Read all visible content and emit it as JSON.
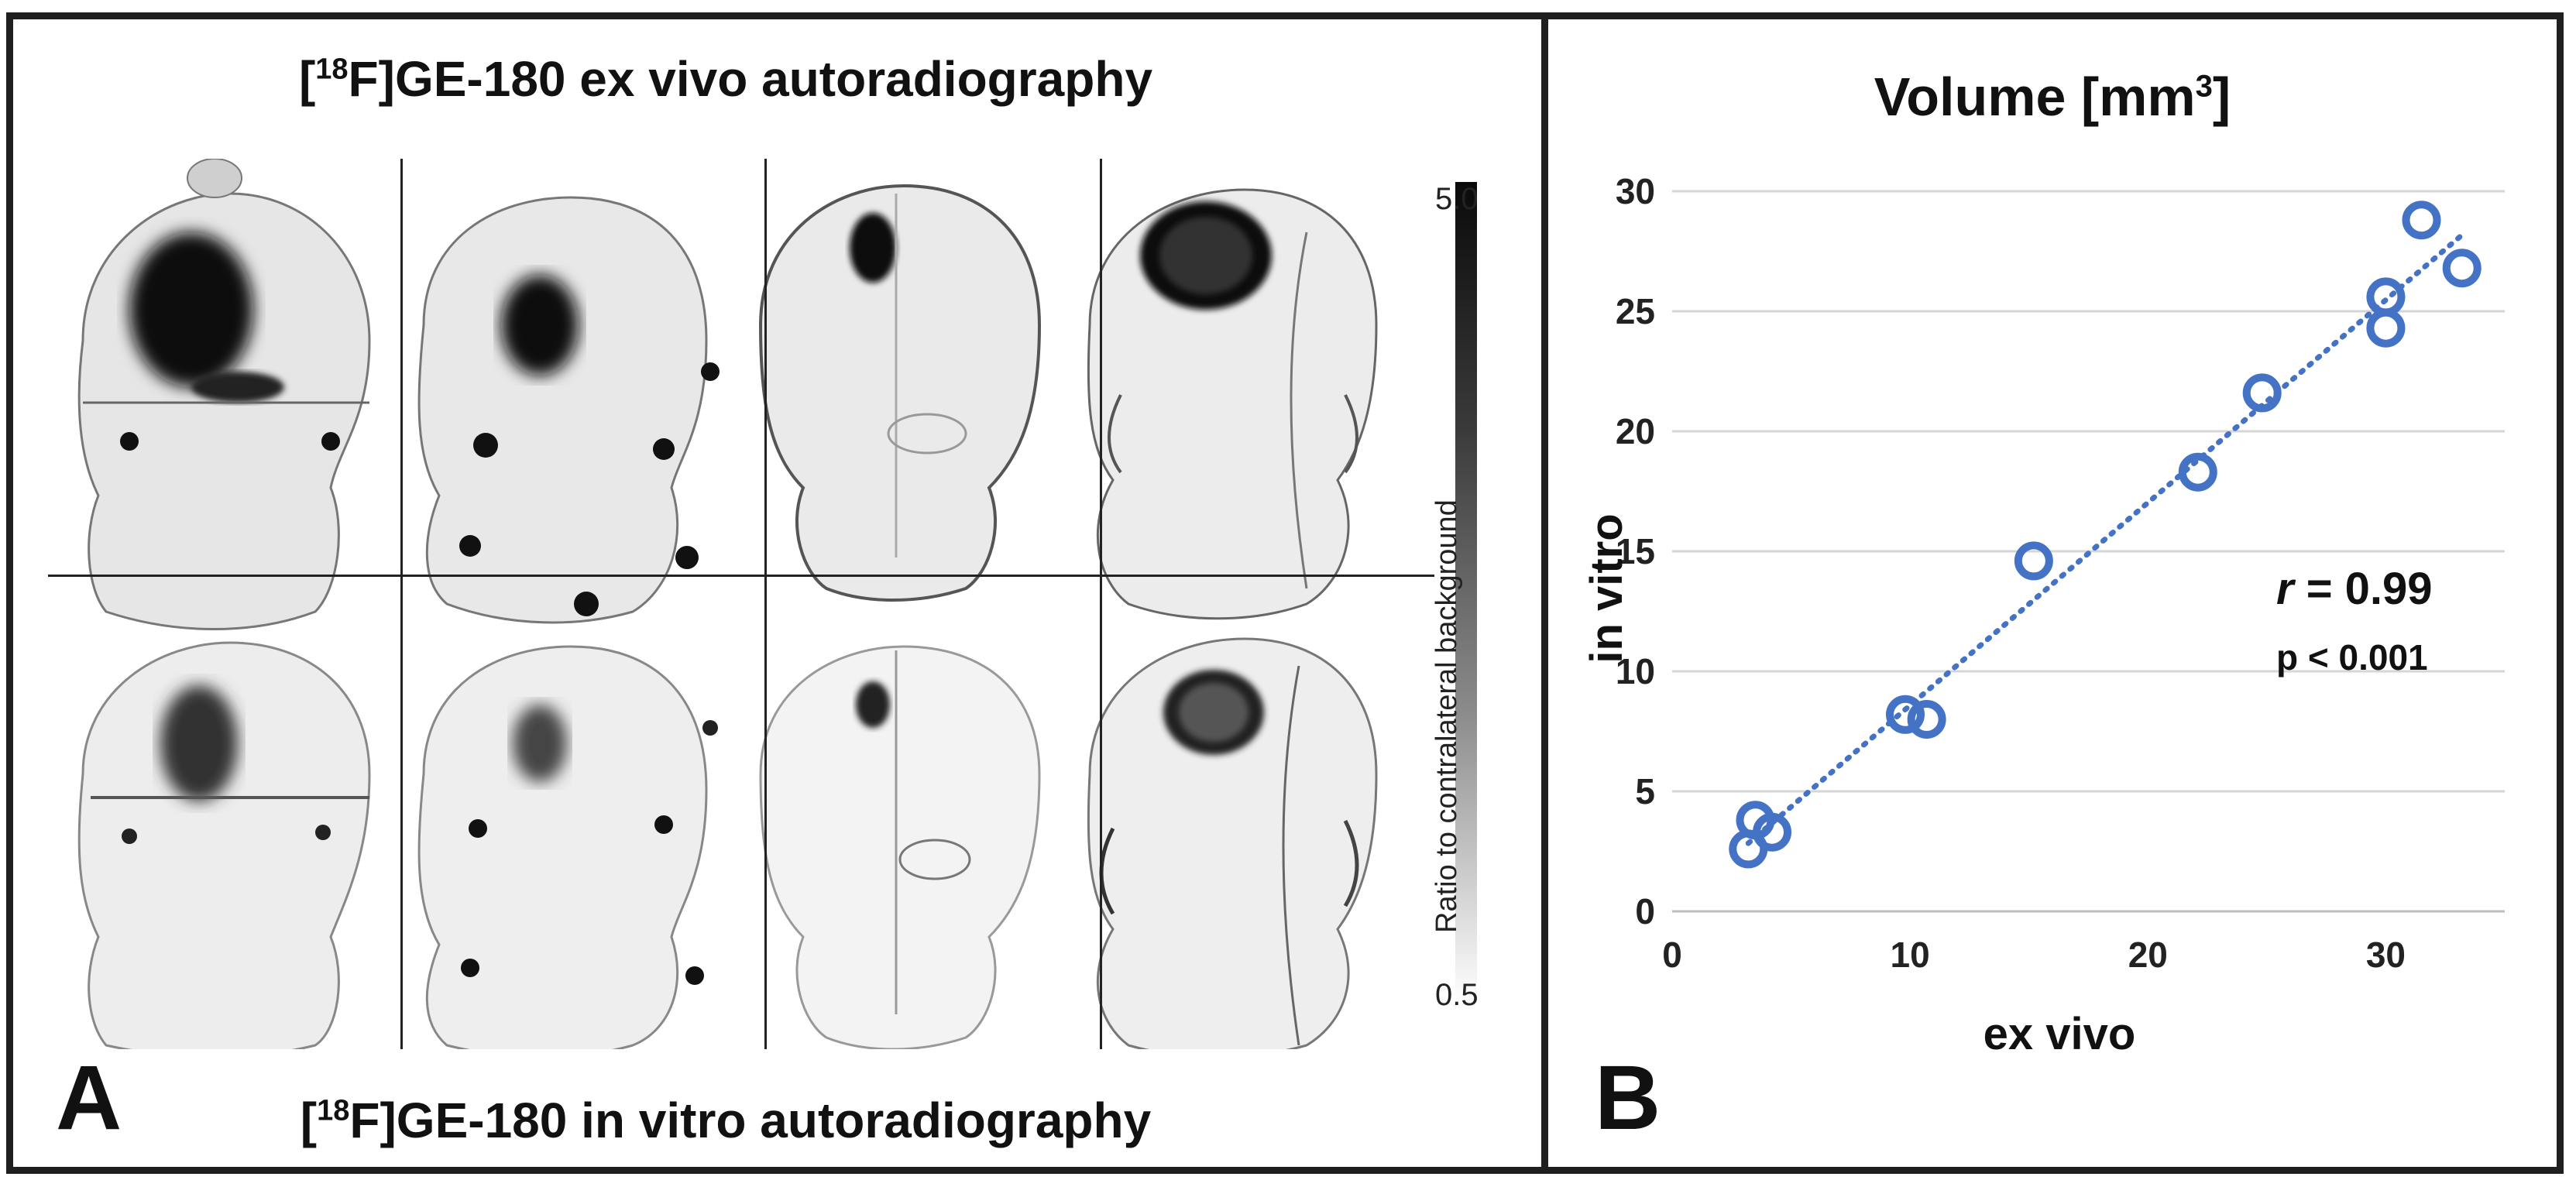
{
  "panel_a": {
    "letter": "A",
    "title_top_prefix": "[",
    "title_top_sup": "18",
    "title_top_suffix": "F]GE-180 ex vivo autoradiography",
    "title_bottom_prefix": "[",
    "title_bottom_sup": "18",
    "title_bottom_suffix": "F]GE-180 in vitro autoradiography",
    "colorbar": {
      "max_label": "5.0",
      "min_label": "0.5",
      "title": "Ratio to contralateral background"
    }
  },
  "panel_b": {
    "letter": "B",
    "title_prefix": "Volume [mm",
    "title_sup": "3",
    "title_suffix": "]",
    "stats": {
      "r_symbol": "r",
      "r_value": " = 0.99",
      "p_text": "p < 0.001"
    }
  },
  "chart_data": {
    "type": "scatter",
    "title": "Volume [mm3]",
    "xlabel": "ex vivo",
    "ylabel": "in vitro",
    "xlim": [
      0,
      35
    ],
    "ylim": [
      0,
      30
    ],
    "xticks": [
      0,
      10,
      20,
      30
    ],
    "yticks": [
      0,
      5,
      10,
      15,
      20,
      25,
      30
    ],
    "grid": "horizontal",
    "trendline": "linear, dotted",
    "color": "#4472c4",
    "points": [
      {
        "x": 3.2,
        "y": 2.6
      },
      {
        "x": 3.5,
        "y": 3.8
      },
      {
        "x": 4.2,
        "y": 3.3
      },
      {
        "x": 9.8,
        "y": 8.2
      },
      {
        "x": 10.7,
        "y": 8.0
      },
      {
        "x": 15.2,
        "y": 14.6
      },
      {
        "x": 22.1,
        "y": 18.3
      },
      {
        "x": 24.8,
        "y": 21.6
      },
      {
        "x": 30.0,
        "y": 24.3
      },
      {
        "x": 30.0,
        "y": 25.6
      },
      {
        "x": 31.5,
        "y": 28.8
      },
      {
        "x": 33.2,
        "y": 26.8
      }
    ]
  }
}
